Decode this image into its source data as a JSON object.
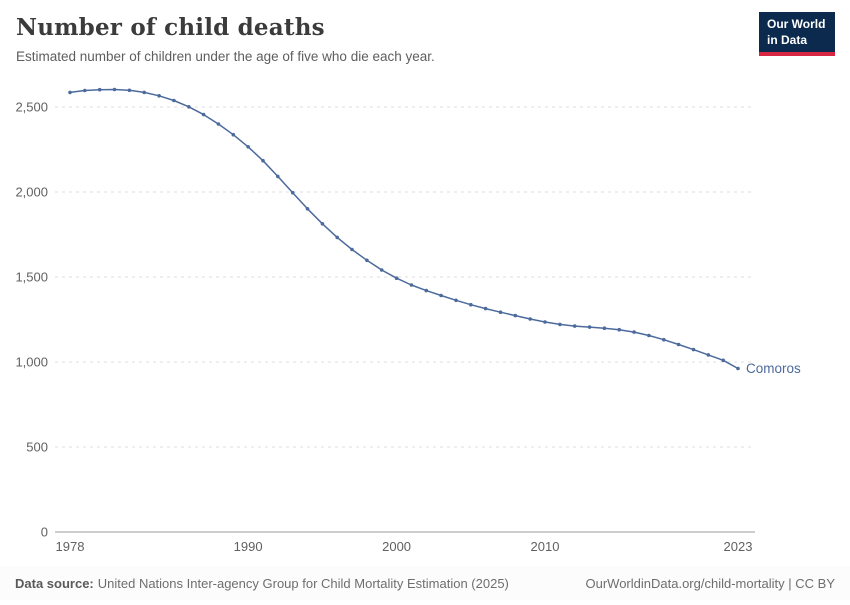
{
  "header": {
    "title": "Number of child deaths",
    "subtitle": "Estimated number of children under the age of five who die each year."
  },
  "logo": {
    "line1": "Our World",
    "line2": "in Data"
  },
  "footer": {
    "source_label": "Data source:",
    "source_text": "United Nations Inter-agency Group for Child Mortality Estimation (2025)",
    "right_text": "OurWorldinData.org/child-mortality | CC BY"
  },
  "chart_data": {
    "type": "line",
    "title": "Number of child deaths",
    "xlabel": "",
    "ylabel": "",
    "xlim": [
      1978,
      2023
    ],
    "ylim": [
      0,
      2600
    ],
    "x_ticks": [
      1978,
      1990,
      2000,
      2010,
      2023
    ],
    "y_ticks": [
      0,
      500,
      1000,
      1500,
      2000,
      2500
    ],
    "grid": "dashed-horizontal",
    "legend_position": "end-of-line-label",
    "line_color": "#4c6a9c",
    "series": [
      {
        "name": "Comoros",
        "x": [
          1978,
          1979,
          1980,
          1981,
          1982,
          1983,
          1984,
          1985,
          1986,
          1987,
          1988,
          1989,
          1990,
          1991,
          1992,
          1993,
          1994,
          1995,
          1996,
          1997,
          1998,
          1999,
          2000,
          2001,
          2002,
          2003,
          2004,
          2005,
          2006,
          2007,
          2008,
          2009,
          2010,
          2011,
          2012,
          2013,
          2014,
          2015,
          2016,
          2017,
          2018,
          2019,
          2020,
          2021,
          2022,
          2023
        ],
        "values": [
          2586,
          2597,
          2602,
          2603,
          2598,
          2586,
          2566,
          2538,
          2501,
          2455,
          2400,
          2337,
          2266,
          2184,
          2092,
          1996,
          1901,
          1813,
          1733,
          1662,
          1598,
          1541,
          1493,
          1453,
          1420,
          1391,
          1363,
          1337,
          1314,
          1293,
          1273,
          1253,
          1235,
          1221,
          1211,
          1205,
          1199,
          1190,
          1176,
          1156,
          1131,
          1103,
          1073,
          1042,
          1010,
          962
        ]
      }
    ]
  }
}
